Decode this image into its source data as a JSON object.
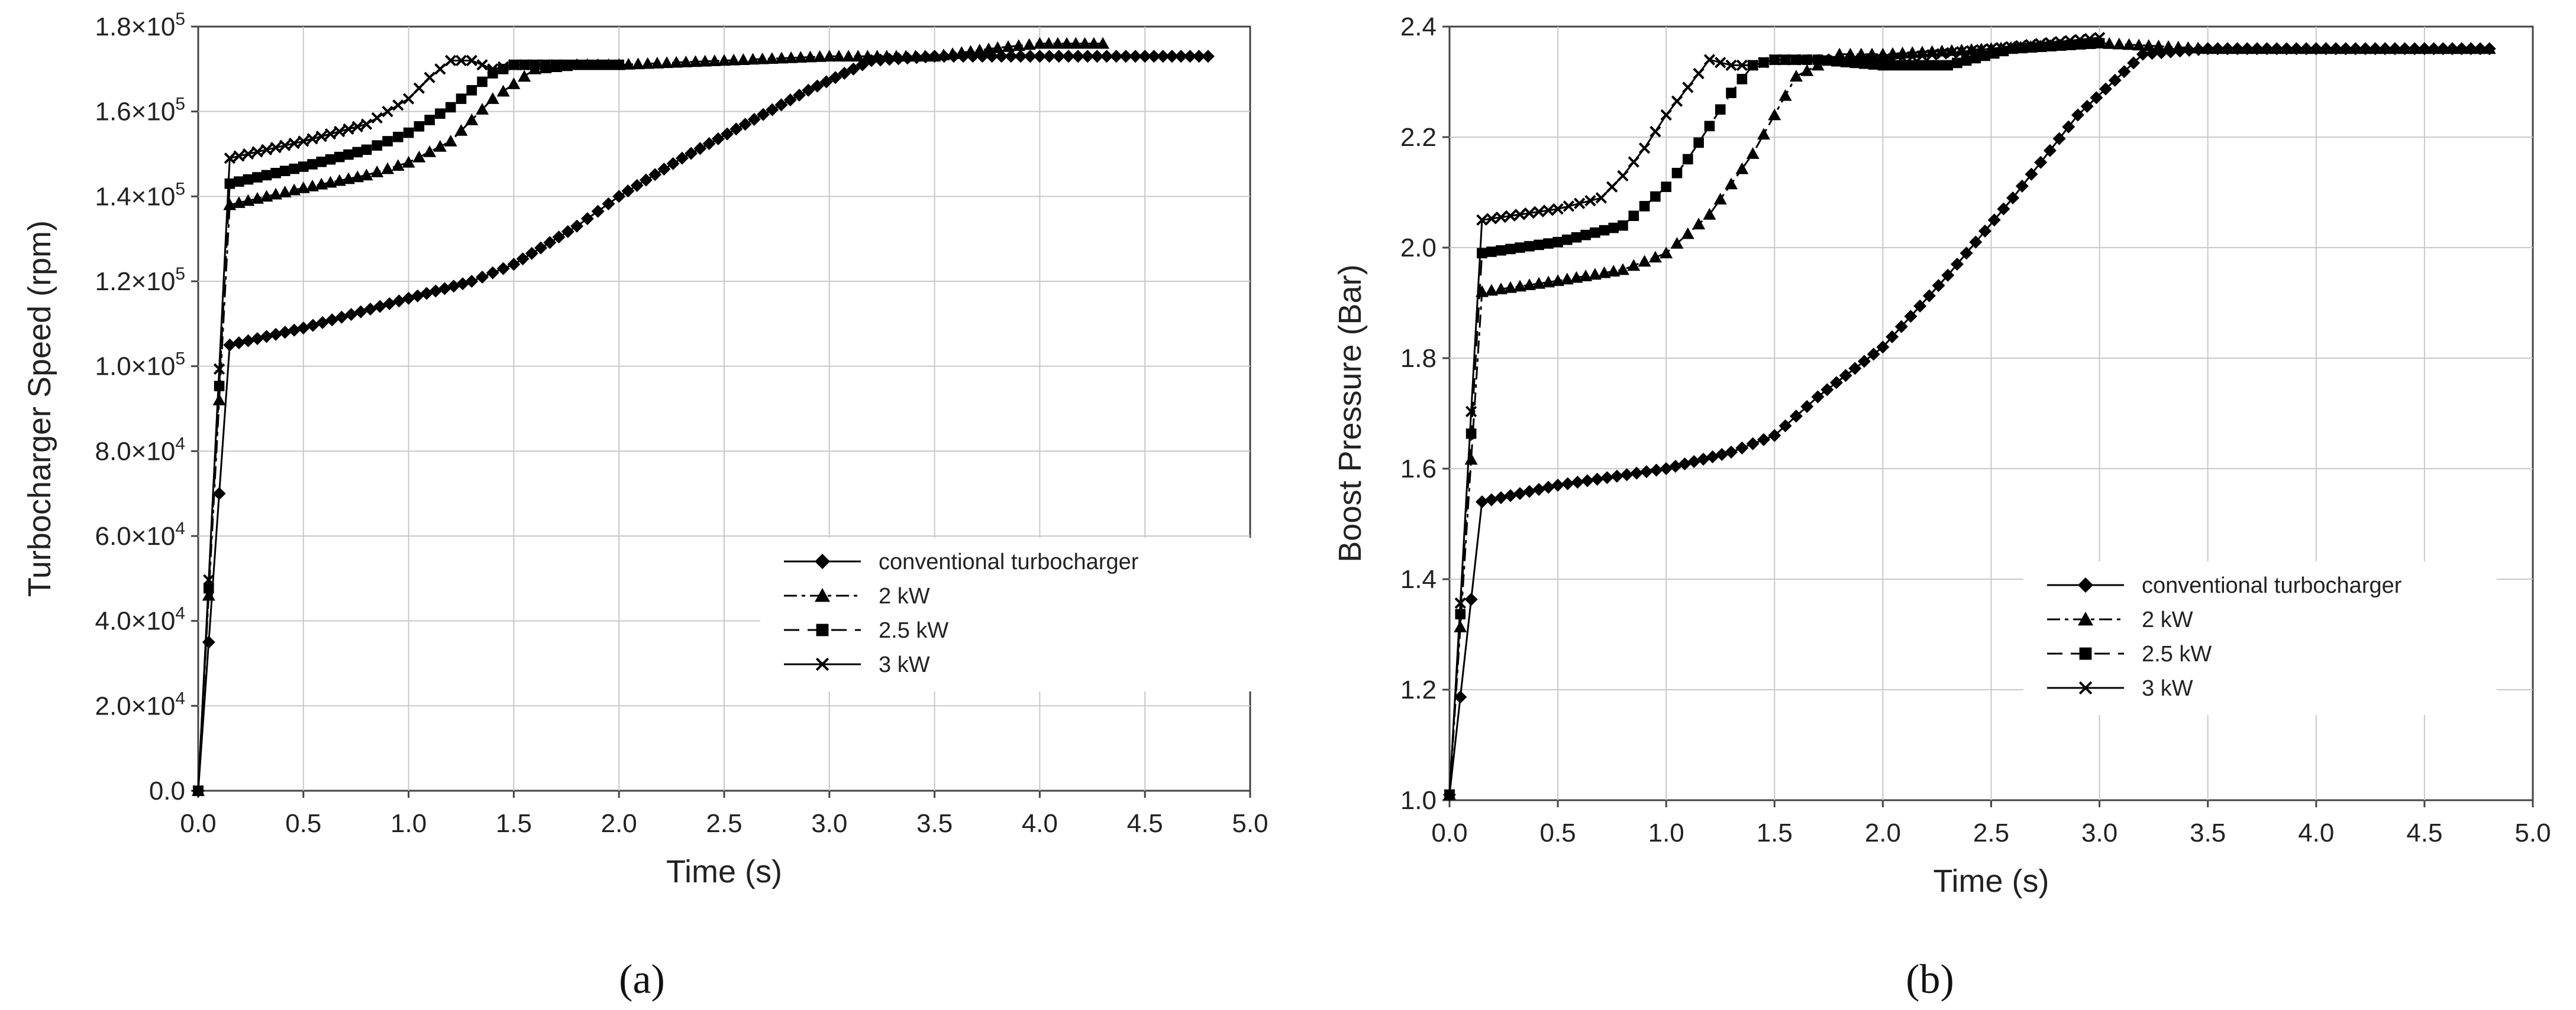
{
  "panels": {
    "a": {
      "label": "(a)"
    },
    "b": {
      "label": "(b)"
    }
  },
  "chart_data": [
    {
      "type": "line",
      "xlabel": "Time (s)",
      "ylabel": "Turbocharger Speed (rpm)",
      "xlim": [
        0,
        5.0
      ],
      "ylim": [
        0,
        180000
      ],
      "xticks": [
        "0.0",
        "0.5",
        "1.0",
        "1.5",
        "2.0",
        "2.5",
        "3.0",
        "3.5",
        "4.0",
        "4.5",
        "5.0"
      ],
      "yticks": [
        {
          "mant": "0.0",
          "exp": ""
        },
        {
          "mant": "2.0",
          "exp": "4"
        },
        {
          "mant": "4.0",
          "exp": "4"
        },
        {
          "mant": "6.0",
          "exp": "4"
        },
        {
          "mant": "8.0",
          "exp": "4"
        },
        {
          "mant": "1.0",
          "exp": "5"
        },
        {
          "mant": "1.2",
          "exp": "5"
        },
        {
          "mant": "1.4",
          "exp": "5"
        },
        {
          "mant": "1.6",
          "exp": "5"
        },
        {
          "mant": "1.8",
          "exp": "5"
        }
      ],
      "grid": true,
      "legend_position": "lower-right",
      "series": [
        {
          "name": "conventional turbocharger",
          "marker": "diamond",
          "x": [
            0,
            0.15,
            0.5,
            1.0,
            1.3,
            1.5,
            1.8,
            2.0,
            2.3,
            2.6,
            2.9,
            3.2,
            3.5,
            4.0,
            4.5,
            4.8
          ],
          "y": [
            0,
            105000,
            109000,
            116000,
            120000,
            124000,
            133000,
            140000,
            149000,
            157000,
            165000,
            172000,
            173000,
            173000,
            173000,
            173000
          ]
        },
        {
          "name": "2 kW",
          "marker": "triangle",
          "x": [
            0,
            0.15,
            0.5,
            0.8,
            1.0,
            1.2,
            1.4,
            1.6,
            1.8,
            2.0,
            2.5,
            3.0,
            3.5,
            3.8,
            4.0,
            4.3
          ],
          "y": [
            0,
            138000,
            142000,
            145000,
            148000,
            153000,
            163000,
            170000,
            171000,
            171000,
            172000,
            173000,
            173000,
            175000,
            176000,
            176000
          ]
        },
        {
          "name": "2.5 kW",
          "marker": "square",
          "x": [
            0,
            0.15,
            0.5,
            0.8,
            1.0,
            1.2,
            1.4,
            1.5,
            1.7,
            2.0
          ],
          "y": [
            0,
            143000,
            147000,
            151000,
            155000,
            161000,
            169000,
            171000,
            171000,
            171000
          ]
        },
        {
          "name": "3 kW",
          "marker": "x",
          "x": [
            0,
            0.15,
            0.5,
            0.8,
            1.0,
            1.1,
            1.2,
            1.3,
            1.4,
            1.5,
            1.7
          ],
          "y": [
            0,
            149000,
            153000,
            157000,
            163000,
            168000,
            172000,
            172000,
            170000,
            171000,
            171000
          ]
        }
      ]
    },
    {
      "type": "line",
      "xlabel": "Time (s)",
      "ylabel": "Boost Pressure (Bar)",
      "xlim": [
        0,
        5.0
      ],
      "ylim": [
        1.0,
        2.4
      ],
      "xticks": [
        "0.0",
        "0.5",
        "1.0",
        "1.5",
        "2.0",
        "2.5",
        "3.0",
        "3.5",
        "4.0",
        "4.5",
        "5.0"
      ],
      "yticks": [
        "1.0",
        "1.2",
        "1.4",
        "1.6",
        "1.8",
        "2.0",
        "2.2",
        "2.4"
      ],
      "grid": true,
      "legend_position": "lower-right",
      "series": [
        {
          "name": "conventional turbocharger",
          "marker": "diamond",
          "x": [
            0,
            0.15,
            0.5,
            1.0,
            1.3,
            1.5,
            1.7,
            2.0,
            2.3,
            2.6,
            2.9,
            3.2,
            3.5,
            4.0,
            4.5,
            4.8
          ],
          "y": [
            1.01,
            1.54,
            1.57,
            1.6,
            1.63,
            1.66,
            1.73,
            1.82,
            1.95,
            2.09,
            2.24,
            2.35,
            2.36,
            2.36,
            2.36,
            2.36
          ]
        },
        {
          "name": "2 kW",
          "marker": "triangle",
          "x": [
            0,
            0.15,
            0.5,
            0.8,
            1.0,
            1.2,
            1.4,
            1.6,
            1.8,
            2.0,
            2.5,
            3.0,
            3.5,
            4.0,
            4.5,
            4.8
          ],
          "y": [
            1.01,
            1.92,
            1.94,
            1.96,
            1.99,
            2.06,
            2.17,
            2.31,
            2.35,
            2.35,
            2.36,
            2.37,
            2.36,
            2.36,
            2.36,
            2.36
          ]
        },
        {
          "name": "2.5 kW",
          "marker": "square",
          "x": [
            0,
            0.15,
            0.5,
            0.8,
            1.0,
            1.1,
            1.2,
            1.3,
            1.4,
            1.5,
            1.7,
            2.0,
            2.3,
            2.6,
            3.0
          ],
          "y": [
            1.01,
            1.99,
            2.01,
            2.04,
            2.11,
            2.16,
            2.22,
            2.28,
            2.33,
            2.34,
            2.34,
            2.33,
            2.33,
            2.36,
            2.37
          ]
        },
        {
          "name": "3 kW",
          "marker": "x",
          "x": [
            0,
            0.15,
            0.5,
            0.7,
            0.8,
            0.9,
            1.0,
            1.1,
            1.2,
            1.3,
            1.4,
            1.5,
            2.0,
            2.5,
            3.0
          ],
          "y": [
            1.01,
            2.05,
            2.07,
            2.09,
            2.13,
            2.18,
            2.24,
            2.29,
            2.34,
            2.33,
            2.33,
            2.34,
            2.34,
            2.36,
            2.38
          ]
        }
      ]
    }
  ],
  "colors": {
    "line": "#000000",
    "grid": "#c8c8c8",
    "axis": "#444444"
  },
  "icons": {
    "diamond": "diamond-marker-icon",
    "triangle": "triangle-marker-icon",
    "square": "square-marker-icon",
    "x": "x-marker-icon"
  }
}
